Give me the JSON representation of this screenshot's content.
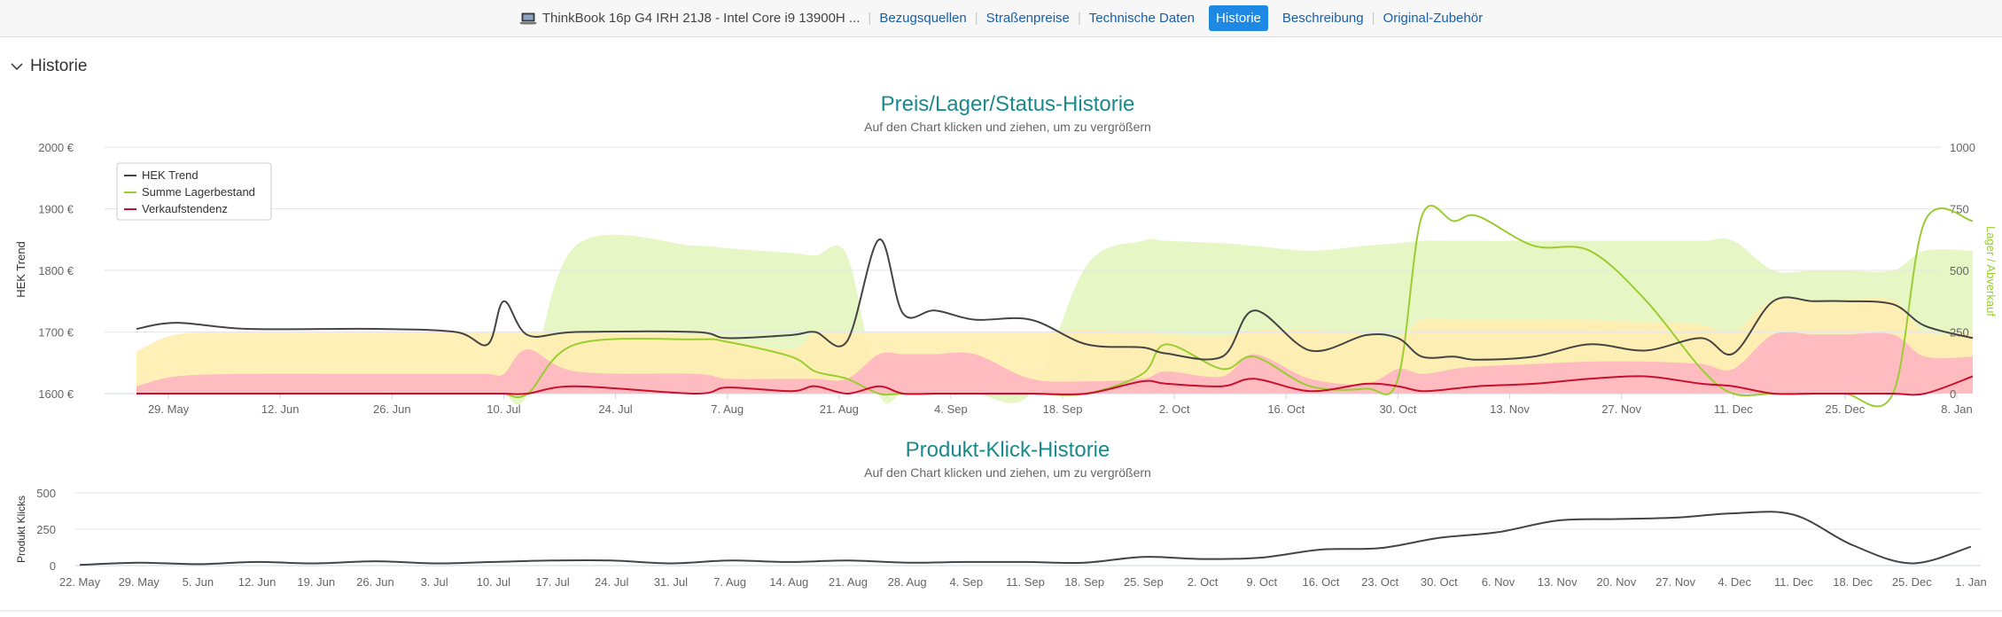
{
  "topbar": {
    "product": "ThinkBook 16p G4 IRH 21J8 - Intel Core i9 13900H ...",
    "links": [
      "Bezugsquellen",
      "Straßenpreise",
      "Technische Daten"
    ],
    "active": "Historie",
    "links_after": [
      "Beschreibung",
      "Original-Zubehör"
    ],
    "accent": "#1e88e5",
    "link_color": "#1a5fa8"
  },
  "section": {
    "title": "Historie"
  },
  "chart_data": [
    {
      "type": "line",
      "title": "Preis/Lager/Status-Historie",
      "subtitle": "Auf den Chart klicken und ziehen, um zu vergrößern",
      "ylabel": "HEK Trend",
      "ylabel_right": "Lager / Abverkauf",
      "ylim": [
        1600,
        2000
      ],
      "ylim_right": [
        0,
        1000
      ],
      "yticks": [
        "1600 €",
        "1700 €",
        "1800 €",
        "1900 €",
        "2000 €"
      ],
      "yticks_right": [
        "0",
        "250",
        "500",
        "750",
        "1000"
      ],
      "xticks": [
        "29. May",
        "12. Jun",
        "26. Jun",
        "10. Jul",
        "24. Jul",
        "7. Aug",
        "21. Aug",
        "4. Sep",
        "18. Sep",
        "2. Oct",
        "16. Oct",
        "30. Oct",
        "13. Nov",
        "27. Nov",
        "11. Dec",
        "25. Dec",
        "8. Jan"
      ],
      "legend": [
        "HEK Trend",
        "Summe Lagerbestand",
        "Verkaufstendenz"
      ],
      "legend_position": "top-left",
      "colors": {
        "hek": "#444444",
        "lager": "#9acd32",
        "verkauf": "#c8102e",
        "band_red": "#ffb6c1",
        "band_yellow": "#ffeeb0",
        "band_green": "#e6f5c2"
      },
      "x_day_offsets": [
        0,
        5,
        14,
        30,
        40,
        44,
        46,
        49,
        55,
        70,
        74,
        82,
        85,
        89,
        93,
        96,
        100,
        105,
        112,
        119,
        126,
        129,
        136,
        140,
        147,
        154,
        158,
        161,
        165,
        168,
        175,
        182,
        189,
        196,
        200,
        205,
        210,
        214,
        220,
        224,
        230
      ],
      "series": [
        {
          "name": "HEK Trend",
          "values": [
            1705,
            1715,
            1705,
            1705,
            1700,
            1680,
            1750,
            1695,
            1700,
            1700,
            1690,
            1695,
            1700,
            1685,
            1850,
            1730,
            1735,
            1720,
            1720,
            1680,
            1675,
            1665,
            1660,
            1735,
            1670,
            1695,
            1690,
            1660,
            1660,
            1655,
            1660,
            1680,
            1670,
            1690,
            1665,
            1750,
            1750,
            1750,
            1745,
            1710,
            1690
          ]
        },
        {
          "name": "Summe Lagerbestand",
          "values": [
            0,
            0,
            0,
            0,
            0,
            0,
            0,
            0,
            200,
            220,
            210,
            150,
            90,
            60,
            0,
            0,
            0,
            0,
            0,
            0,
            80,
            200,
            100,
            150,
            30,
            20,
            60,
            720,
            700,
            720,
            600,
            580,
            380,
            100,
            0,
            0,
            0,
            0,
            0,
            700,
            700
          ]
        },
        {
          "name": "Verkaufstendenz",
          "values": [
            0,
            0,
            0,
            0,
            0,
            0,
            0,
            0,
            30,
            0,
            25,
            10,
            30,
            0,
            30,
            0,
            0,
            0,
            0,
            0,
            50,
            40,
            30,
            60,
            10,
            40,
            30,
            10,
            20,
            30,
            40,
            60,
            70,
            40,
            30,
            0,
            0,
            0,
            0,
            0,
            70
          ]
        }
      ]
    },
    {
      "type": "line",
      "title": "Produkt-Klick-Historie",
      "subtitle": "Auf den Chart klicken und ziehen, um zu vergrößern",
      "ylabel": "Produkt Klicks",
      "ylim": [
        0,
        500
      ],
      "yticks": [
        "0",
        "250",
        "500"
      ],
      "categories": [
        "22. May",
        "29. May",
        "5. Jun",
        "12. Jun",
        "19. Jun",
        "26. Jun",
        "3. Jul",
        "10. Jul",
        "17. Jul",
        "24. Jul",
        "31. Jul",
        "7. Aug",
        "14. Aug",
        "21. Aug",
        "28. Aug",
        "4. Sep",
        "11. Sep",
        "18. Sep",
        "25. Sep",
        "2. Oct",
        "9. Oct",
        "16. Oct",
        "23. Oct",
        "30. Oct",
        "6. Nov",
        "13. Nov",
        "20. Nov",
        "27. Nov",
        "4. Dec",
        "11. Dec",
        "18. Dec",
        "25. Dec",
        "1. Jan"
      ],
      "series": [
        {
          "name": "Produkt Klicks",
          "values": [
            5,
            20,
            10,
            25,
            15,
            30,
            15,
            25,
            35,
            35,
            15,
            35,
            25,
            35,
            20,
            25,
            25,
            20,
            60,
            45,
            55,
            110,
            120,
            190,
            230,
            310,
            320,
            330,
            360,
            350,
            140,
            15,
            130
          ]
        }
      ]
    }
  ]
}
